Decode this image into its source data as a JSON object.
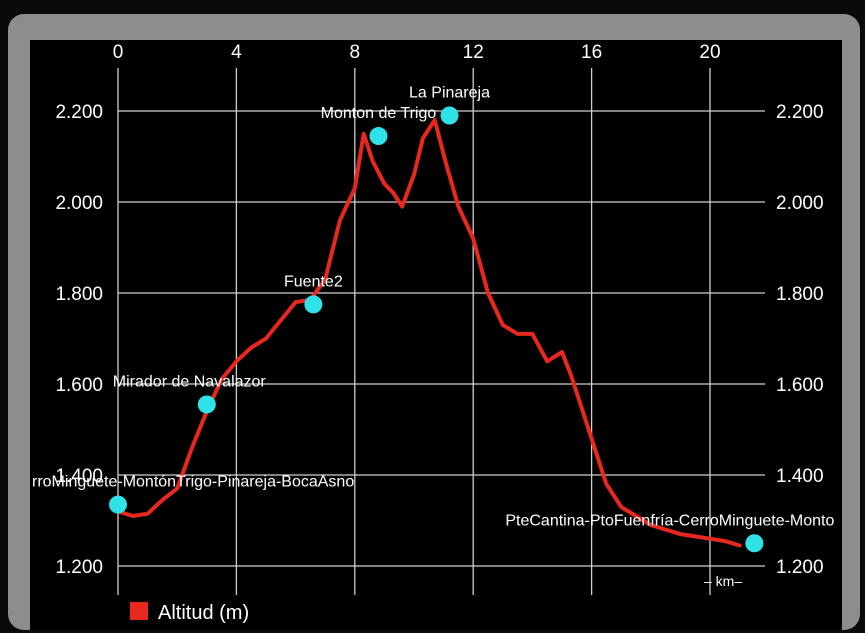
{
  "chart_data": {
    "type": "line",
    "title": "",
    "xlabel": "– km–",
    "ylabel": "",
    "xlim": [
      0,
      21.5
    ],
    "ylim": [
      1200,
      2300
    ],
    "x_ticks": [
      0,
      4,
      8,
      12,
      16,
      20
    ],
    "y_ticks": [
      1200,
      1400,
      1600,
      1800,
      2000,
      2200
    ],
    "y_tick_labels": [
      "1.200",
      "1.400",
      "1.600",
      "1.800",
      "2.000",
      "2.200"
    ],
    "grid": true,
    "legend_position": "bottom-left",
    "series": [
      {
        "name": "Altitud (m)",
        "color": "#e8281e",
        "x": [
          0,
          0.5,
          1,
          1.5,
          2,
          2.5,
          3,
          3.5,
          4,
          4.5,
          5,
          5.5,
          6,
          6.5,
          7,
          7.5,
          8,
          8.3,
          8.6,
          9,
          9.3,
          9.6,
          10,
          10.3,
          10.7,
          11.1,
          11.5,
          12,
          12.5,
          13,
          13.5,
          14,
          14.5,
          15,
          15.3,
          15.6,
          16,
          16.5,
          17,
          17.5,
          18,
          18.5,
          19,
          19.5,
          20,
          20.5,
          21
        ],
        "y": [
          1320,
          1310,
          1315,
          1345,
          1370,
          1460,
          1540,
          1610,
          1650,
          1680,
          1700,
          1740,
          1780,
          1785,
          1830,
          1960,
          2030,
          2150,
          2090,
          2040,
          2020,
          1990,
          2060,
          2140,
          2180,
          2080,
          1990,
          1920,
          1800,
          1730,
          1710,
          1710,
          1650,
          1670,
          1620,
          1560,
          1480,
          1380,
          1330,
          1310,
          1290,
          1280,
          1270,
          1265,
          1260,
          1255,
          1245
        ]
      }
    ],
    "points": [
      {
        "label": "rroMinguete-MontónTrigo-Pinareja-BocaAsno",
        "x": 0,
        "y": 1335
      },
      {
        "label": "Mirador de Navalazor",
        "x": 3,
        "y": 1555
      },
      {
        "label": "Fuente2",
        "x": 6.6,
        "y": 1775
      },
      {
        "label": "Monton de Trigo",
        "x": 8.8,
        "y": 2145
      },
      {
        "label": "La Pinareja",
        "x": 11.2,
        "y": 2190
      },
      {
        "label": "PteCantina-PtoFuenfría-CerroMinguete-Monto",
        "x": 21.5,
        "y": 1250
      }
    ],
    "point_color": "#2fe2e8",
    "legend": [
      {
        "label": "Altitud (m)",
        "color": "#e8281e"
      }
    ]
  }
}
